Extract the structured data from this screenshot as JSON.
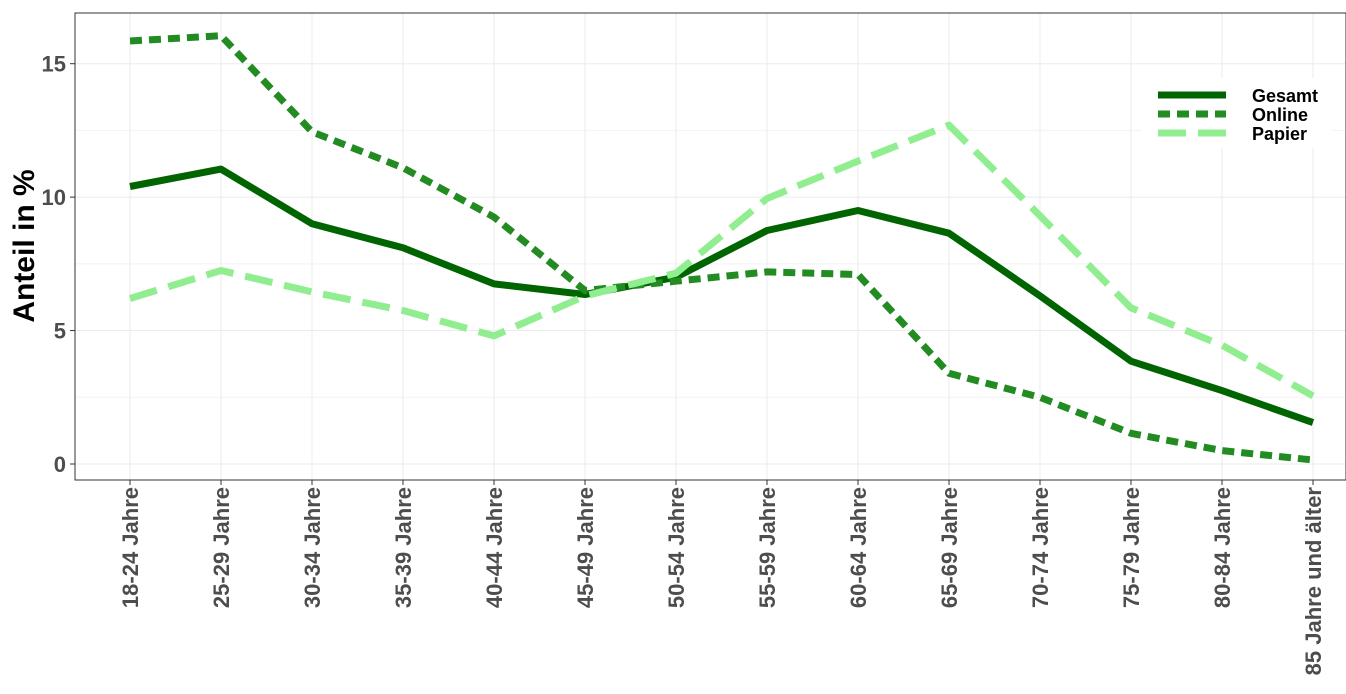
{
  "chart_data": {
    "type": "line",
    "title": "",
    "xlabel": "",
    "ylabel": "Anteil in %",
    "ylim": [
      -0.6,
      16.9
    ],
    "yticks": [
      0,
      5,
      10,
      15
    ],
    "grid": true,
    "legend_position": "top-right",
    "categories": [
      "18-24 Jahre",
      "25-29 Jahre",
      "30-34 Jahre",
      "35-39 Jahre",
      "40-44 Jahre",
      "45-49 Jahre",
      "50-54 Jahre",
      "55-59 Jahre",
      "60-64 Jahre",
      "65-69 Jahre",
      "70-74 Jahre",
      "75-79 Jahre",
      "80-84 Jahre",
      "85 Jahre und älter"
    ],
    "series": [
      {
        "name": "Gesamt",
        "color": "#006400",
        "dash": "solid",
        "values": [
          10.4,
          11.05,
          9.0,
          8.1,
          6.75,
          6.35,
          7.0,
          8.75,
          9.5,
          8.65,
          6.3,
          3.85,
          2.75,
          1.55
        ]
      },
      {
        "name": "Online",
        "color": "#228B22",
        "dash": "dotted",
        "values": [
          15.85,
          16.05,
          12.45,
          11.1,
          9.25,
          6.5,
          6.85,
          7.2,
          7.1,
          3.4,
          2.5,
          1.15,
          0.5,
          0.15
        ]
      },
      {
        "name": "Papier",
        "color": "#90EE90",
        "dash": "dashed",
        "values": [
          6.2,
          7.25,
          6.45,
          5.75,
          4.8,
          6.3,
          7.15,
          9.95,
          11.35,
          12.7,
          9.3,
          5.85,
          4.45,
          2.55
        ]
      }
    ]
  }
}
